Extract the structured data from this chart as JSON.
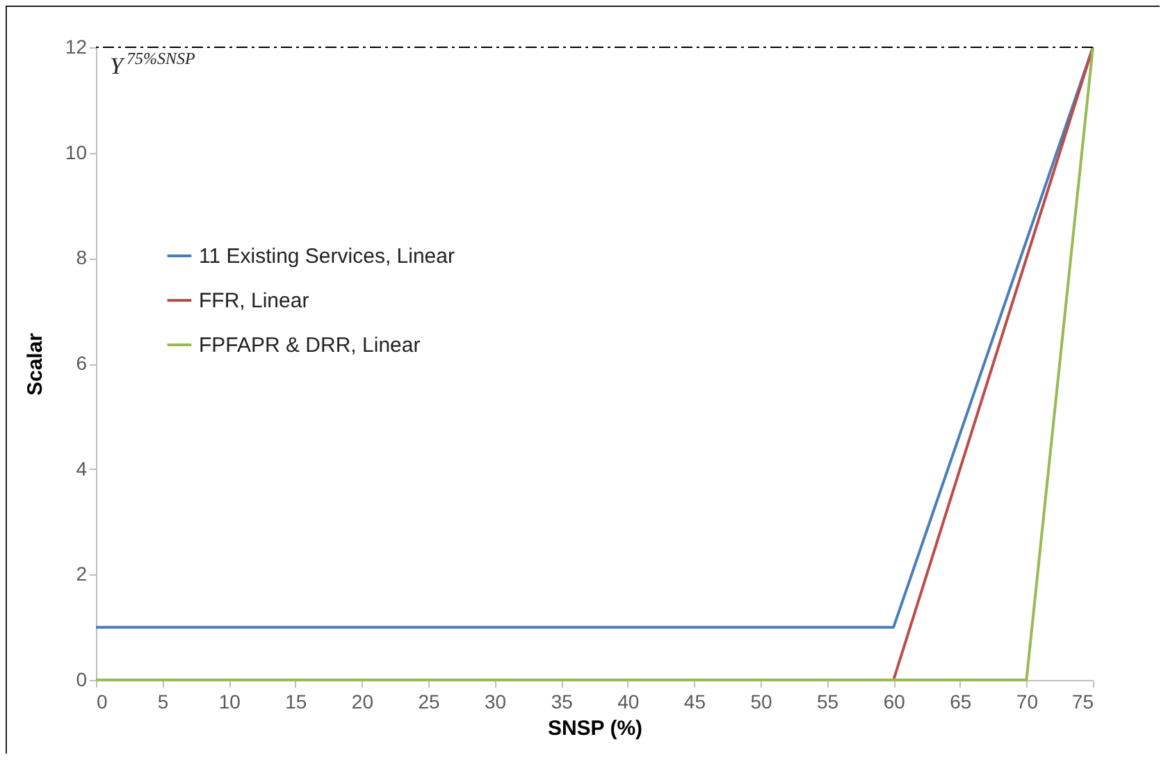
{
  "chart_data": {
    "type": "line",
    "xlabel": "SNSP (%)",
    "ylabel": "Scalar",
    "series": [
      {
        "name": "11 Existing Services, Linear",
        "color": "#4a7ebb",
        "x": [
          0,
          60,
          75
        ],
        "values": [
          1,
          1,
          12
        ]
      },
      {
        "name": "FFR, Linear",
        "color": "#be4b48",
        "x": [
          60,
          75
        ],
        "values": [
          0,
          12
        ]
      },
      {
        "name": "FPFAPR & DRR, Linear",
        "color": "#98b954",
        "x": [
          0,
          70,
          75
        ],
        "values": [
          0,
          0,
          12
        ]
      }
    ],
    "xlim": [
      0,
      75
    ],
    "xticks": [
      0,
      5,
      10,
      15,
      20,
      25,
      30,
      35,
      40,
      45,
      50,
      55,
      60,
      65,
      70,
      75
    ],
    "ylim": [
      0,
      12
    ],
    "yticks": [
      0,
      2,
      4,
      6,
      8,
      10,
      12
    ],
    "ref_lines": [
      {
        "axis": "y",
        "value": 12,
        "label": "Y$^{75%SNSP}$",
        "color": "#000000"
      }
    ],
    "legend": "left",
    "grid": false,
    "marker": "none",
    "line_style": "solid"
  }
}
